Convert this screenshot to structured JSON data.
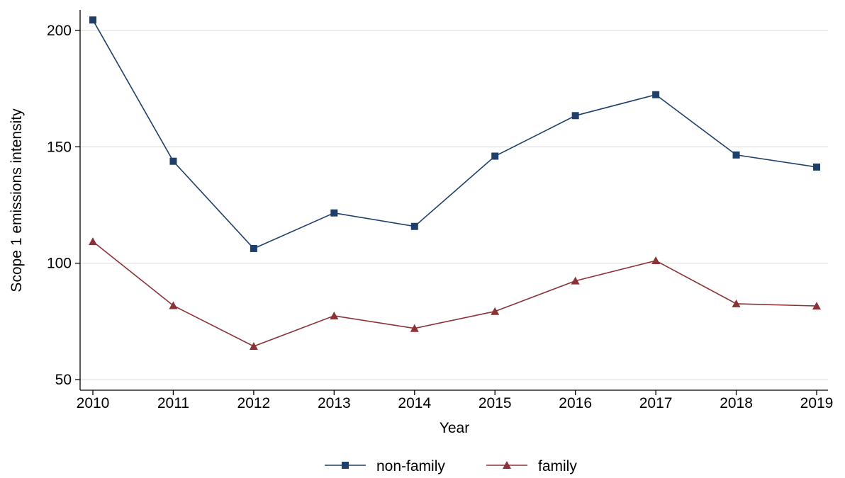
{
  "chart_data": {
    "type": "line",
    "xlabel": "Year",
    "ylabel": "Scope 1 emissions intensity",
    "x": [
      2010,
      2011,
      2012,
      2013,
      2014,
      2015,
      2016,
      2017,
      2018,
      2019
    ],
    "xticks": [
      "2010",
      "2011",
      "2012",
      "2013",
      "2014",
      "2015",
      "2016",
      "2017",
      "2018",
      "2019"
    ],
    "yticks": [
      50,
      100,
      150,
      200
    ],
    "ylim": [
      50,
      205
    ],
    "grid": "horizontal",
    "legend_position": "bottom",
    "series": [
      {
        "name": "non-family",
        "color": "#1f3f6b",
        "marker": "square",
        "values": [
          204.5,
          143.8,
          106.3,
          121.6,
          115.8,
          146.0,
          163.4,
          172.4,
          146.5,
          141.3
        ]
      },
      {
        "name": "family",
        "color": "#8b3236",
        "marker": "triangle",
        "values": [
          109.3,
          81.8,
          64.3,
          77.4,
          72.0,
          79.3,
          92.4,
          101.1,
          82.6,
          81.6
        ]
      }
    ]
  }
}
